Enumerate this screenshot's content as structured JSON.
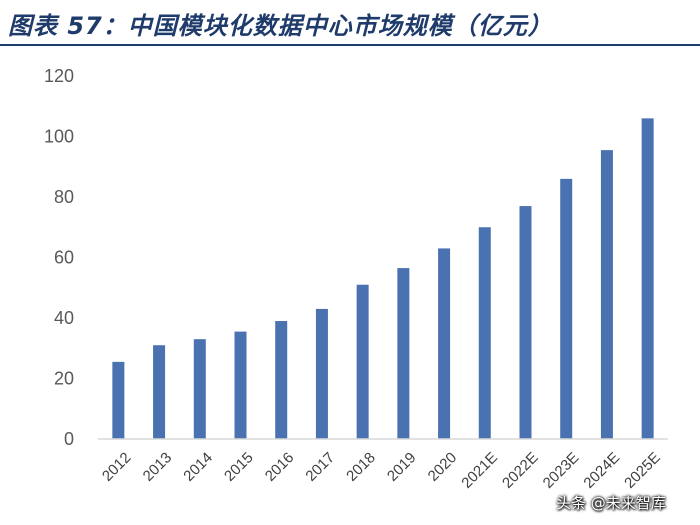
{
  "header": {
    "title": "图表 57：中国模块化数据中心市场规模（亿元）"
  },
  "watermark": "头条 @未来智库",
  "chart_data": {
    "type": "bar",
    "title": "图表 57：中国模块化数据中心市场规模（亿元）",
    "categories": [
      "2012",
      "2013",
      "2014",
      "2015",
      "2016",
      "2017",
      "2018",
      "2019",
      "2020",
      "2021E",
      "2022E",
      "2023E",
      "2024E",
      "2025E"
    ],
    "values": [
      25.5,
      31,
      33,
      35.5,
      39,
      43,
      51,
      56.5,
      63,
      70,
      77,
      86,
      95.5,
      106
    ],
    "ylim": [
      0,
      120
    ],
    "yticks": [
      0,
      20,
      40,
      60,
      80,
      100,
      120
    ],
    "bar_color": "#4a72b0",
    "axis_color": "#d9d9d9",
    "grid": false,
    "legend": "none"
  }
}
